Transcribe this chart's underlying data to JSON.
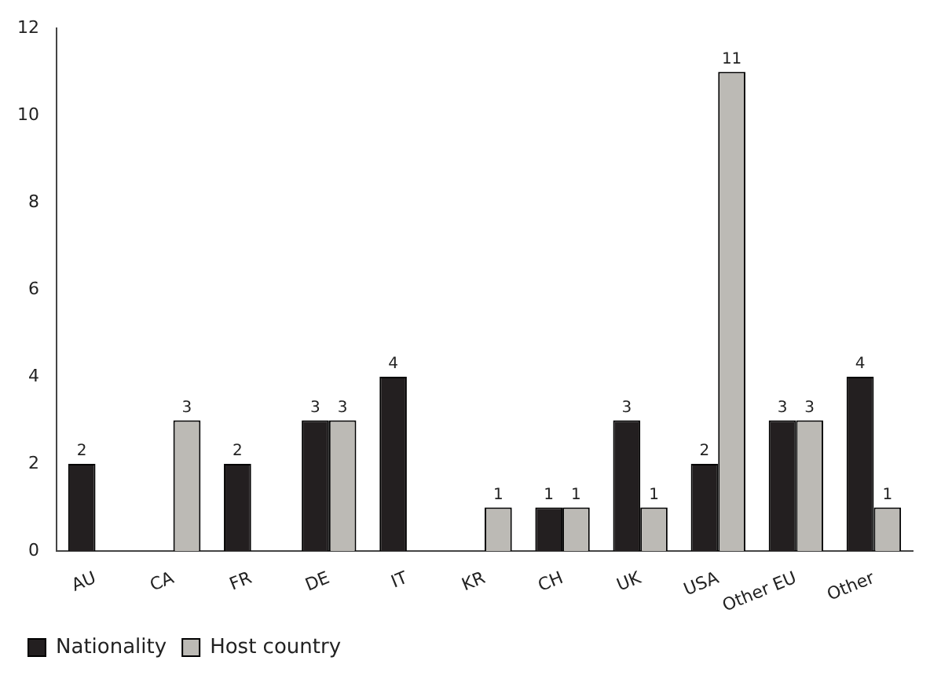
{
  "chart_data": {
    "type": "bar",
    "categories": [
      "AU",
      "CA",
      "FR",
      "DE",
      "IT",
      "KR",
      "CH",
      "UK",
      "USA",
      "Other EU",
      "Other"
    ],
    "series": [
      {
        "name": "Nationality",
        "color": "#231f20",
        "values": [
          2,
          null,
          2,
          3,
          4,
          null,
          1,
          3,
          2,
          3,
          4
        ]
      },
      {
        "name": "Host country",
        "color": "#bcbab5",
        "values": [
          null,
          3,
          null,
          3,
          null,
          1,
          1,
          1,
          11,
          3,
          1
        ]
      }
    ],
    "ylim": [
      0,
      12
    ],
    "yticks": [
      0,
      2,
      4,
      6,
      8,
      10,
      12
    ],
    "grid": false,
    "legend": "bottom left",
    "data_labels": true
  }
}
